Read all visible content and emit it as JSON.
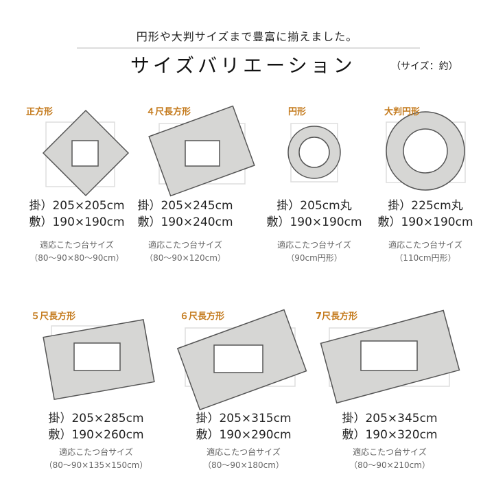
{
  "header": {
    "tagline": "円形や大判サイズまで豊富に揃えました。",
    "title": "サイズバリエーション",
    "note": "（サイズ：約）"
  },
  "colors": {
    "label": "#c47a1c",
    "fill": "#d6d6d4",
    "outline": "#555555",
    "frame": "#dddddd"
  },
  "items": [
    {
      "label": "正方形",
      "kake": "掛）205×205cm",
      "shiki": "敷）190×190cm",
      "fit_label": "適応こたつ台サイズ",
      "fit": "（80〜90×80〜90cm）"
    },
    {
      "label": "４尺長方形",
      "kake": "掛）205×245cm",
      "shiki": "敷）190×240cm",
      "fit_label": "適応こたつ台サイズ",
      "fit": "（80〜90×120cm）"
    },
    {
      "label": "円形",
      "kake": "掛）205cm丸",
      "shiki": "敷）190×190cm",
      "fit_label": "適応こたつ台サイズ",
      "fit": "（90cm円形）"
    },
    {
      "label": "大判円形",
      "kake": "掛）225cm丸",
      "shiki": "敷）190×190cm",
      "fit_label": "適応こたつ台サイズ",
      "fit": "（110cm円形）"
    },
    {
      "label": "５尺長方形",
      "kake": "掛）205×285cm",
      "shiki": "敷）190×260cm",
      "fit_label": "適応こたつ台サイズ",
      "fit": "（80〜90×135×150cm）"
    },
    {
      "label": "６尺長方形",
      "kake": "掛）205×315cm",
      "shiki": "敷）190×290cm",
      "fit_label": "適応こたつ台サイズ",
      "fit": "（80〜90×180cm）"
    },
    {
      "label": "7尺長方形",
      "kake": "掛）205×345cm",
      "shiki": "敷）190×320cm",
      "fit_label": "適応こたつ台サイズ",
      "fit": "（80〜90×210cm）"
    }
  ]
}
